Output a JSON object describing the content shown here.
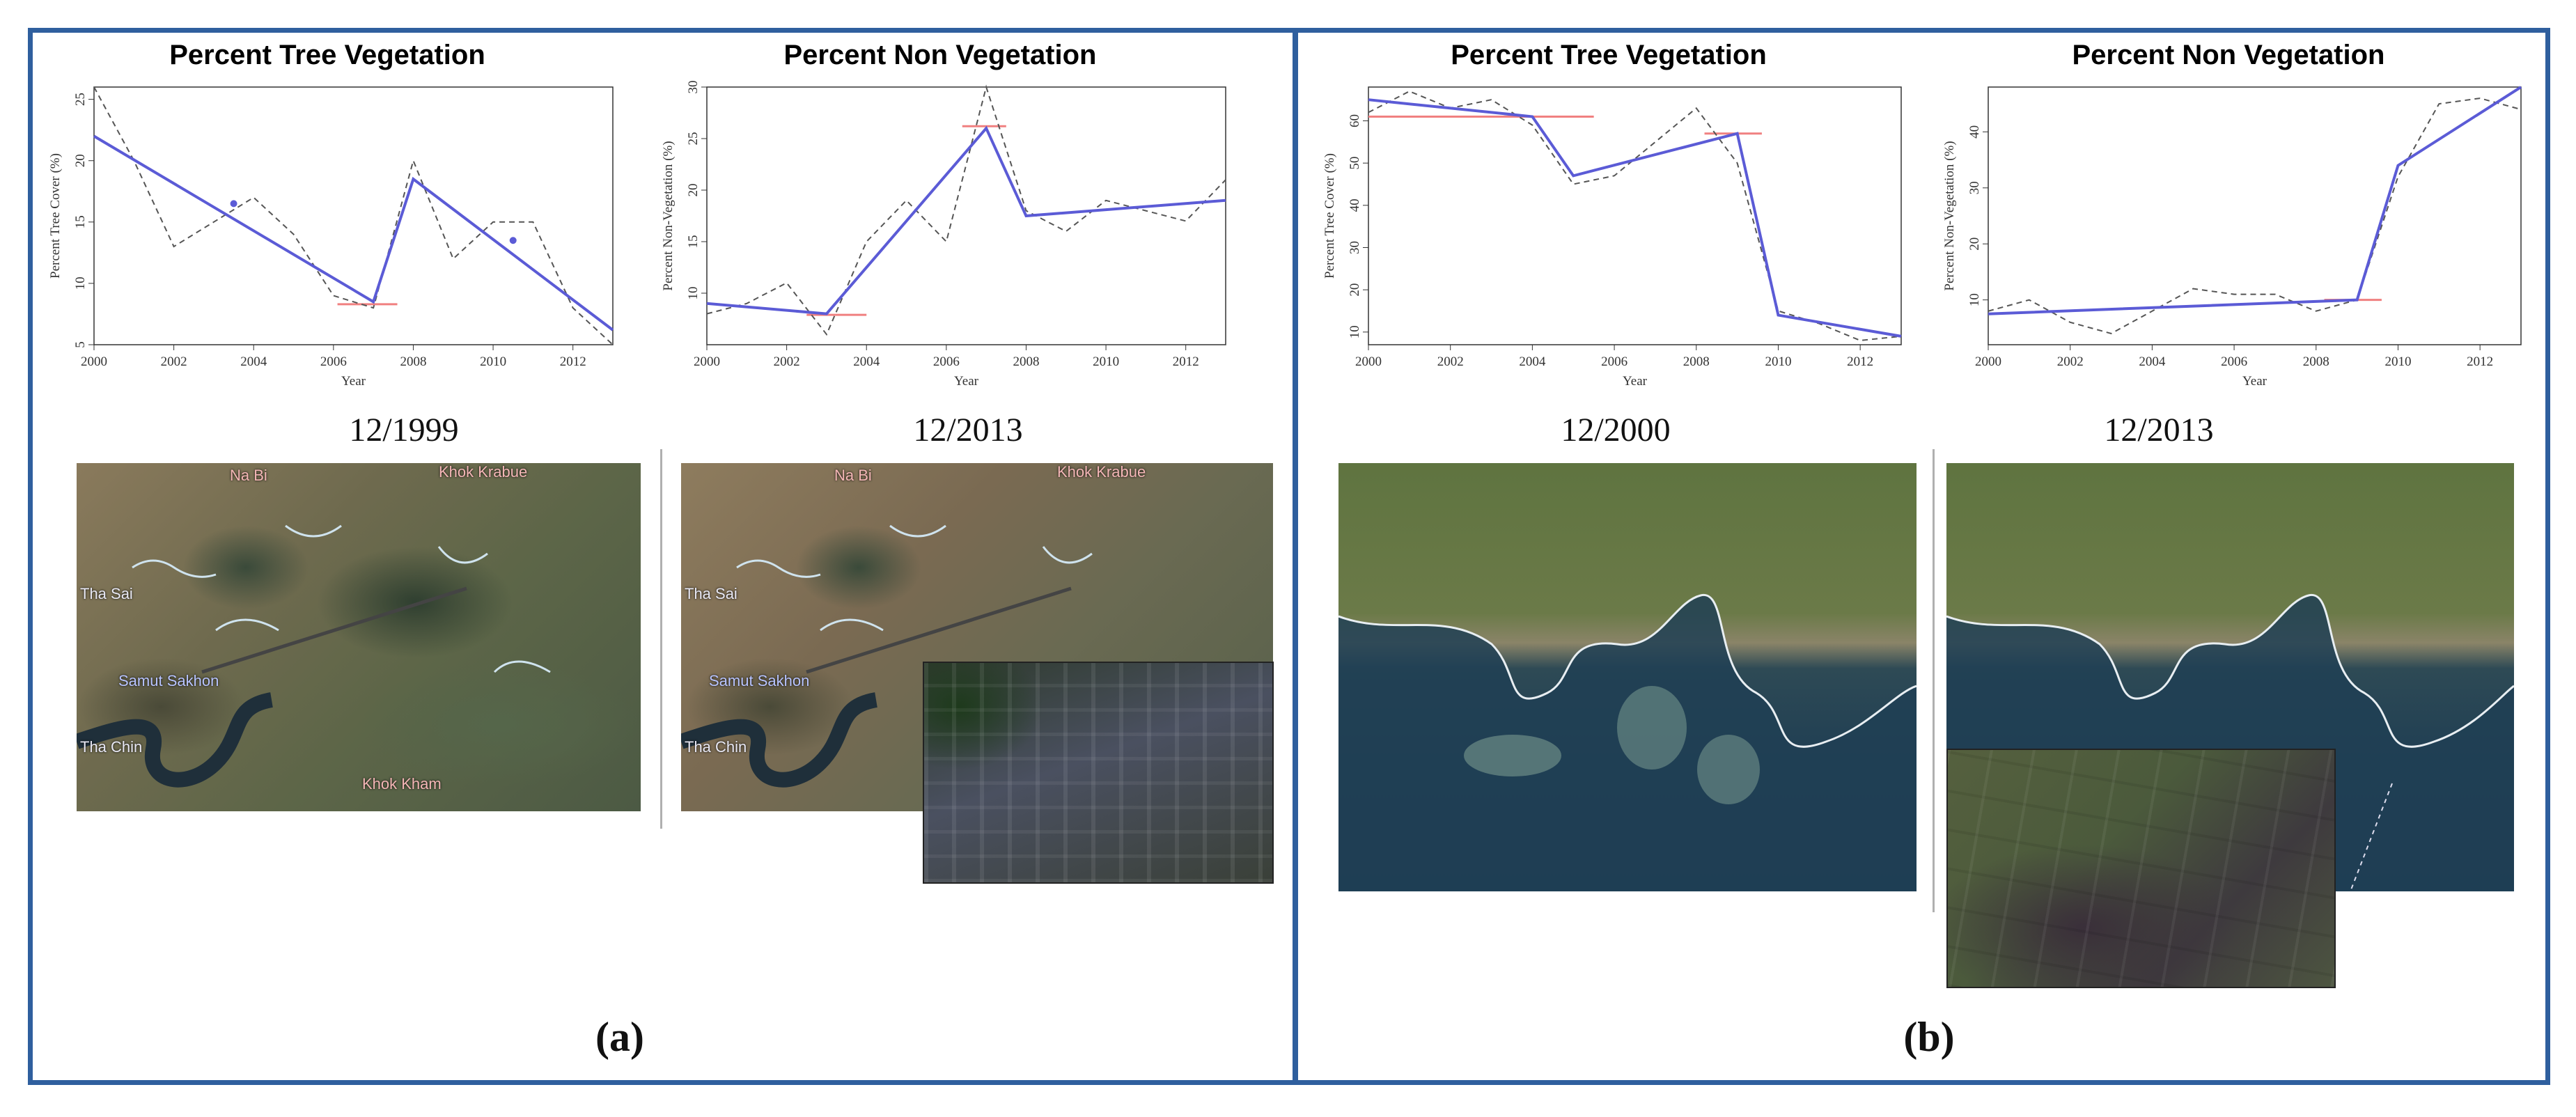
{
  "panels": {
    "a": {
      "label": "(a)",
      "left_date": "12/1999",
      "right_date": "12/2013",
      "places": {
        "na_bi": "Na Bi",
        "khok_krabue": "Khok Krabue",
        "tha_sai": "Tha Sai",
        "samut_sakhon": "Samut Sakhon",
        "tha_chin": "Tha Chin",
        "khok_kham": "Khok Kham"
      }
    },
    "b": {
      "label": "(b)",
      "left_date": "12/2000",
      "right_date": "12/2013"
    }
  },
  "colors": {
    "frame": "#2f5f9e",
    "fit_line": "#5b5bd6",
    "observed": "#555555",
    "breakpoint": "#f08080"
  },
  "chart_data": [
    {
      "id": "a-tree",
      "type": "line",
      "title": "Percent Tree Vegetation",
      "xlabel": "Year",
      "ylabel": "Percent Tree Cover (%)",
      "xlim": [
        2000,
        2013
      ],
      "ylim": [
        5,
        26
      ],
      "xticks": [
        "2000",
        "2002",
        "2004",
        "2006",
        "2008",
        "2010",
        "2012"
      ],
      "yticks": [
        "5",
        "10",
        "15",
        "20",
        "25"
      ],
      "series": [
        {
          "name": "observed",
          "x": [
            2000,
            2001,
            2002,
            2003,
            2004,
            2005,
            2006,
            2007,
            2008,
            2009,
            2010,
            2011,
            2012,
            2013
          ],
          "values": [
            26,
            20,
            13,
            15,
            17,
            14,
            9,
            8,
            20,
            12,
            15,
            15,
            8,
            5
          ]
        },
        {
          "name": "fitted",
          "x": [
            2000,
            2007,
            2008,
            2013
          ],
          "values": [
            22,
            8.5,
            18.5,
            6.2
          ]
        }
      ],
      "breakpoints": [
        {
          "x1": 2006.1,
          "x2": 2007.6,
          "y": 8.3
        }
      ],
      "points": [
        {
          "x": 2003.5,
          "y": 16.5
        },
        {
          "x": 2010.5,
          "y": 13.5
        }
      ]
    },
    {
      "id": "a-nonveg",
      "type": "line",
      "title": "Percent Non Vegetation",
      "xlabel": "Year",
      "ylabel": "Percent Non-Vegetation (%)",
      "xlim": [
        2000,
        2013
      ],
      "ylim": [
        5,
        30
      ],
      "xticks": [
        "2000",
        "2002",
        "2004",
        "2006",
        "2008",
        "2010",
        "2012"
      ],
      "yticks": [
        "10",
        "15",
        "20",
        "25",
        "30"
      ],
      "series": [
        {
          "name": "observed",
          "x": [
            2000,
            2001,
            2002,
            2003,
            2004,
            2005,
            2006,
            2007,
            2008,
            2009,
            2010,
            2011,
            2012,
            2013
          ],
          "values": [
            8,
            9,
            11,
            6,
            15,
            19,
            15,
            30,
            18,
            16,
            19,
            18,
            17,
            21
          ]
        },
        {
          "name": "fitted",
          "x": [
            2000,
            2003,
            2007,
            2008,
            2013
          ],
          "values": [
            9,
            8,
            26,
            17.5,
            19
          ]
        }
      ],
      "breakpoints": [
        {
          "x1": 2002.5,
          "x2": 2004,
          "y": 7.9
        },
        {
          "x1": 2006.4,
          "x2": 2007.5,
          "y": 26.2
        }
      ],
      "points": []
    },
    {
      "id": "b-tree",
      "type": "line",
      "title": "Percent Tree Vegetation",
      "xlabel": "Year",
      "ylabel": "Percent Tree Cover (%)",
      "xlim": [
        2000,
        2013
      ],
      "ylim": [
        7,
        68
      ],
      "xticks": [
        "2000",
        "2002",
        "2004",
        "2006",
        "2008",
        "2010",
        "2012"
      ],
      "yticks": [
        "10",
        "20",
        "30",
        "40",
        "50",
        "60"
      ],
      "series": [
        {
          "name": "observed",
          "x": [
            2000,
            2001,
            2002,
            2003,
            2004,
            2005,
            2006,
            2007,
            2008,
            2009,
            2010,
            2011,
            2012,
            2013
          ],
          "values": [
            62,
            67,
            63,
            65,
            59,
            45,
            47,
            55,
            63,
            50,
            15,
            12,
            8,
            9
          ]
        },
        {
          "name": "fitted",
          "x": [
            2000,
            2004,
            2005,
            2009,
            2010,
            2013
          ],
          "values": [
            65,
            61,
            47,
            57,
            14,
            9
          ]
        }
      ],
      "breakpoints": [
        {
          "x1": 2000,
          "x2": 2005.5,
          "y": 61
        },
        {
          "x1": 2008.2,
          "x2": 2009.6,
          "y": 57
        }
      ],
      "points": []
    },
    {
      "id": "b-nonveg",
      "type": "line",
      "title": "Percent Non Vegetation",
      "xlabel": "Year",
      "ylabel": "Percent Non-Vegetation (%)",
      "xlim": [
        2000,
        2013
      ],
      "ylim": [
        2,
        48
      ],
      "xticks": [
        "2000",
        "2002",
        "2004",
        "2006",
        "2008",
        "2010",
        "2012"
      ],
      "yticks": [
        "10",
        "20",
        "30",
        "40"
      ],
      "series": [
        {
          "name": "observed",
          "x": [
            2000,
            2001,
            2002,
            2003,
            2004,
            2005,
            2006,
            2007,
            2008,
            2009,
            2010,
            2011,
            2012,
            2013
          ],
          "values": [
            8,
            10,
            6,
            4,
            8,
            12,
            11,
            11,
            8,
            10,
            32,
            45,
            46,
            44
          ]
        },
        {
          "name": "fitted",
          "x": [
            2000,
            2009,
            2010,
            2013
          ],
          "values": [
            7.5,
            10,
            34,
            48
          ]
        }
      ],
      "breakpoints": [
        {
          "x1": 2008.2,
          "x2": 2009.6,
          "y": 10
        }
      ],
      "points": []
    }
  ]
}
